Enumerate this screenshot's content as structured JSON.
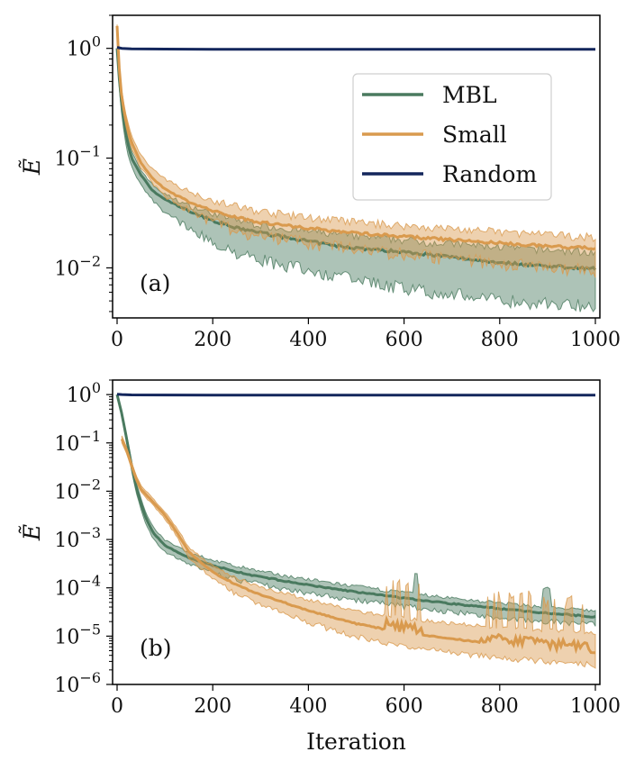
{
  "chart_data": [
    {
      "type": "line",
      "panel": "(a)",
      "xlabel": "",
      "ylabel": "Ẽ",
      "yscale": "log",
      "xlim": [
        0,
        1000
      ],
      "ylim": [
        0.0035,
        2.0
      ],
      "xticks": [
        0,
        200,
        400,
        600,
        800,
        1000
      ],
      "xtick_labels": [
        "0",
        "200",
        "400",
        "600",
        "800",
        "1000"
      ],
      "yticks": [
        1,
        0.1,
        0.01
      ],
      "ytick_labels": [
        {
          "base": "10",
          "exp": "0"
        },
        {
          "base": "10",
          "exp": "−1"
        },
        {
          "base": "10",
          "exp": "−2"
        }
      ],
      "legend": {
        "location": "upper-right",
        "entries": [
          {
            "label": "MBL",
            "color": "#4a7a5f"
          },
          {
            "label": "Small",
            "color": "#d99a4e"
          },
          {
            "label": "Random",
            "color": "#13265c"
          }
        ]
      },
      "series": [
        {
          "name": "MBL",
          "color": "#4a7a5f",
          "x": [
            0,
            5,
            10,
            20,
            30,
            50,
            75,
            100,
            150,
            200,
            250,
            300,
            350,
            400,
            450,
            500,
            550,
            600,
            650,
            700,
            750,
            800,
            850,
            900,
            950,
            1000
          ],
          "y": [
            1.0,
            0.5,
            0.3,
            0.15,
            0.1,
            0.07,
            0.05,
            0.042,
            0.033,
            0.027,
            0.023,
            0.021,
            0.019,
            0.0175,
            0.016,
            0.0152,
            0.0145,
            0.014,
            0.0133,
            0.0125,
            0.0118,
            0.0112,
            0.0108,
            0.0104,
            0.0101,
            0.0098
          ],
          "lower": [
            0.9,
            0.42,
            0.24,
            0.12,
            0.085,
            0.058,
            0.042,
            0.034,
            0.025,
            0.019,
            0.016,
            0.0135,
            0.012,
            0.011,
            0.0098,
            0.0088,
            0.0081,
            0.0075,
            0.007,
            0.0066,
            0.0062,
            0.0058,
            0.0056,
            0.0054,
            0.0053,
            0.0052
          ],
          "upper": [
            1.0,
            0.55,
            0.34,
            0.17,
            0.115,
            0.077,
            0.056,
            0.046,
            0.036,
            0.0305,
            0.0265,
            0.0238,
            0.0222,
            0.0208,
            0.0198,
            0.0188,
            0.018,
            0.0173,
            0.0166,
            0.016,
            0.0155,
            0.015,
            0.0145,
            0.0141,
            0.0137,
            0.0134
          ]
        },
        {
          "name": "Small",
          "color": "#d99a4e",
          "x": [
            0,
            5,
            10,
            20,
            30,
            50,
            75,
            100,
            150,
            200,
            250,
            300,
            350,
            400,
            450,
            500,
            550,
            600,
            650,
            700,
            750,
            800,
            850,
            900,
            950,
            1000
          ],
          "y": [
            1.6,
            0.6,
            0.35,
            0.2,
            0.14,
            0.09,
            0.065,
            0.052,
            0.04,
            0.033,
            0.029,
            0.026,
            0.0245,
            0.023,
            0.0218,
            0.0208,
            0.02,
            0.0193,
            0.0186,
            0.018,
            0.0174,
            0.0168,
            0.0163,
            0.0158,
            0.0154,
            0.015
          ],
          "lower": [
            1.4,
            0.55,
            0.32,
            0.18,
            0.125,
            0.083,
            0.06,
            0.048,
            0.036,
            0.029,
            0.025,
            0.022,
            0.0205,
            0.0192,
            0.018,
            0.017,
            0.0161,
            0.0154,
            0.0146,
            0.0139,
            0.0132,
            0.0126,
            0.012,
            0.0115,
            0.011,
            0.0106
          ],
          "upper": [
            1.65,
            0.66,
            0.39,
            0.23,
            0.16,
            0.105,
            0.078,
            0.063,
            0.049,
            0.04,
            0.035,
            0.0315,
            0.0295,
            0.0278,
            0.0264,
            0.0252,
            0.0242,
            0.0234,
            0.0226,
            0.0219,
            0.0212,
            0.0205,
            0.0199,
            0.0193,
            0.0188,
            0.0183
          ]
        },
        {
          "name": "Random",
          "color": "#13265c",
          "x": [
            0,
            10,
            30,
            100,
            200,
            400,
            600,
            800,
            1000
          ],
          "y": [
            1.02,
            1.0,
            0.99,
            0.985,
            0.98,
            0.98,
            0.98,
            0.98,
            0.98
          ]
        }
      ]
    },
    {
      "type": "line",
      "panel": "(b)",
      "xlabel": "Iteration",
      "ylabel": "Ẽ",
      "yscale": "log",
      "xlim": [
        0,
        1000
      ],
      "ylim": [
        1e-06,
        2.0
      ],
      "xticks": [
        0,
        200,
        400,
        600,
        800,
        1000
      ],
      "xtick_labels": [
        "0",
        "200",
        "400",
        "600",
        "800",
        "1000"
      ],
      "yticks": [
        1,
        0.1,
        0.01,
        0.001,
        0.0001,
        1e-05,
        1e-06
      ],
      "ytick_labels": [
        {
          "base": "10",
          "exp": "0"
        },
        {
          "base": "10",
          "exp": "−1"
        },
        {
          "base": "10",
          "exp": "−2"
        },
        {
          "base": "10",
          "exp": "−3"
        },
        {
          "base": "10",
          "exp": "−4"
        },
        {
          "base": "10",
          "exp": "−5"
        },
        {
          "base": "10",
          "exp": "−6"
        }
      ],
      "series": [
        {
          "name": "MBL",
          "color": "#4a7a5f",
          "x": [
            0,
            10,
            20,
            30,
            40,
            50,
            60,
            75,
            100,
            150,
            200,
            250,
            300,
            400,
            500,
            600,
            700,
            800,
            900,
            1000
          ],
          "y": [
            1.0,
            0.4,
            0.12,
            0.035,
            0.012,
            0.0055,
            0.0028,
            0.0014,
            0.00075,
            0.00042,
            0.00029,
            0.000215,
            0.000168,
            0.000114,
            8.2e-05,
            6.1e-05,
            4.7e-05,
            3.7e-05,
            3e-05,
            2.5e-05
          ],
          "lower": [
            0.95,
            0.35,
            0.1,
            0.028,
            0.0095,
            0.0043,
            0.0022,
            0.0011,
            0.00058,
            0.00033,
            0.00023,
            0.00017,
            0.000133,
            9e-05,
            6.4e-05,
            4.7e-05,
            3.6e-05,
            2.8e-05,
            2.3e-05,
            2e-05
          ],
          "upper": [
            1.0,
            0.45,
            0.14,
            0.043,
            0.015,
            0.007,
            0.0036,
            0.0018,
            0.00095,
            0.00053,
            0.000365,
            0.00027,
            0.00021,
            0.000143,
            0.000103,
            7.7e-05,
            5.9e-05,
            4.7e-05,
            3.8e-05,
            3.2e-05
          ]
        },
        {
          "name": "Small",
          "color": "#d99a4e",
          "x": [
            10,
            20,
            30,
            40,
            50,
            75,
            100,
            125,
            150,
            200,
            250,
            300,
            400,
            500,
            550,
            600,
            650,
            700,
            750,
            800,
            850,
            900,
            950,
            1000
          ],
          "y": [
            0.12,
            0.07,
            0.035,
            0.018,
            0.011,
            0.006,
            0.0032,
            0.0014,
            0.00055,
            0.00021,
            0.000115,
            7.1e-05,
            3.4e-05,
            1.8e-05,
            1.45e-05,
            1.2e-05,
            1.02e-05,
            8.8e-06,
            7.7e-06,
            6.8e-06,
            6.1e-06,
            5.5e-06,
            5e-06,
            4.6e-06
          ],
          "lower": [
            0.1,
            0.06,
            0.03,
            0.016,
            0.0098,
            0.0053,
            0.0028,
            0.0012,
            0.00046,
            0.000165,
            8.5e-05,
            5e-05,
            2.2e-05,
            1.12e-05,
            8.8e-06,
            7.2e-06,
            6e-06,
            5.2e-06,
            4.6e-06,
            4.1e-06,
            3.7e-06,
            3.4e-06,
            3.1e-06,
            2.9e-06
          ],
          "upper": [
            0.14,
            0.08,
            0.04,
            0.021,
            0.013,
            0.007,
            0.0037,
            0.0017,
            0.00068,
            0.00027,
            0.000155,
            0.000102,
            5.5e-05,
            3.2e-05,
            2.7e-05,
            2.3e-05,
            2e-05,
            1.78e-05,
            1.62e-05,
            1.48e-05,
            1.37e-05,
            1.27e-05,
            1.19e-05,
            1.12e-05
          ]
        },
        {
          "name": "Random",
          "color": "#13265c",
          "x": [
            0,
            10,
            30,
            100,
            200,
            400,
            600,
            800,
            1000
          ],
          "y": [
            1.02,
            1.0,
            0.985,
            0.98,
            0.975,
            0.975,
            0.975,
            0.975,
            0.975
          ]
        }
      ]
    }
  ]
}
